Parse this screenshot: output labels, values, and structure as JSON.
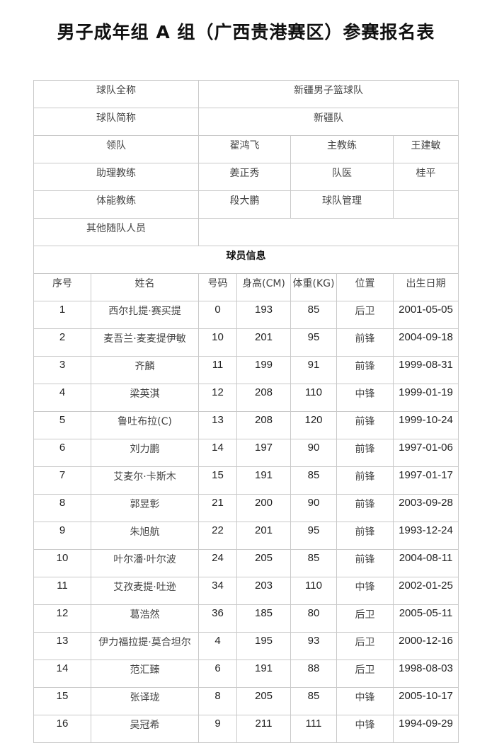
{
  "title": "男子成年组 A 组（广西贵港赛区）参赛报名表",
  "team_info": {
    "full_name_label": "球队全称",
    "full_name": "新疆男子篮球队",
    "short_name_label": "球队简称",
    "short_name": "新疆队",
    "leader_label": "领队",
    "leader": "翟鸿飞",
    "head_coach_label": "主教练",
    "head_coach": "王建敏",
    "assistant_coach_label": "助理教练",
    "assistant_coach": "姜正秀",
    "doctor_label": "队医",
    "doctor": "桂平",
    "fitness_coach_label": "体能教练",
    "fitness_coach": "段大鹏",
    "manager_label": "球队管理",
    "manager": "",
    "other_staff_label": "其他随队人员",
    "other_staff": ""
  },
  "players_section_title": "球员信息",
  "player_headers": [
    "序号",
    "姓名",
    "号码",
    "身高(CM)",
    "体重(KG)",
    "位置",
    "出生日期"
  ],
  "players": [
    [
      "1",
      "西尔扎提·赛买提",
      "0",
      "193",
      "85",
      "后卫",
      "2001-05-05"
    ],
    [
      "2",
      "麦吾兰·麦麦提伊敏",
      "10",
      "201",
      "95",
      "前锋",
      "2004-09-18"
    ],
    [
      "3",
      "齐麟",
      "11",
      "199",
      "91",
      "前锋",
      "1999-08-31"
    ],
    [
      "4",
      "梁英淇",
      "12",
      "208",
      "110",
      "中锋",
      "1999-01-19"
    ],
    [
      "5",
      "鲁吐布拉(C)",
      "13",
      "208",
      "120",
      "前锋",
      "1999-10-24"
    ],
    [
      "6",
      "刘力鹏",
      "14",
      "197",
      "90",
      "前锋",
      "1997-01-06"
    ],
    [
      "7",
      "艾麦尔·卡斯木",
      "15",
      "191",
      "85",
      "前锋",
      "1997-01-17"
    ],
    [
      "8",
      "郭昱彰",
      "21",
      "200",
      "90",
      "前锋",
      "2003-09-28"
    ],
    [
      "9",
      "朱旭航",
      "22",
      "201",
      "95",
      "前锋",
      "1993-12-24"
    ],
    [
      "10",
      "叶尔潘·叶尔波",
      "24",
      "205",
      "85",
      "前锋",
      "2004-08-11"
    ],
    [
      "11",
      "艾孜麦提·吐逊",
      "34",
      "203",
      "110",
      "中锋",
      "2002-01-25"
    ],
    [
      "12",
      "葛浩然",
      "36",
      "185",
      "80",
      "后卫",
      "2005-05-11"
    ],
    [
      "13",
      "伊力福拉提·莫合坦尔",
      "4",
      "195",
      "93",
      "后卫",
      "2000-12-16"
    ],
    [
      "14",
      "范汇臻",
      "6",
      "191",
      "88",
      "后卫",
      "1998-08-03"
    ],
    [
      "15",
      "张译珑",
      "8",
      "205",
      "85",
      "中锋",
      "2005-10-17"
    ],
    [
      "16",
      "吴冠希",
      "9",
      "211",
      "111",
      "中锋",
      "1994-09-29"
    ]
  ]
}
